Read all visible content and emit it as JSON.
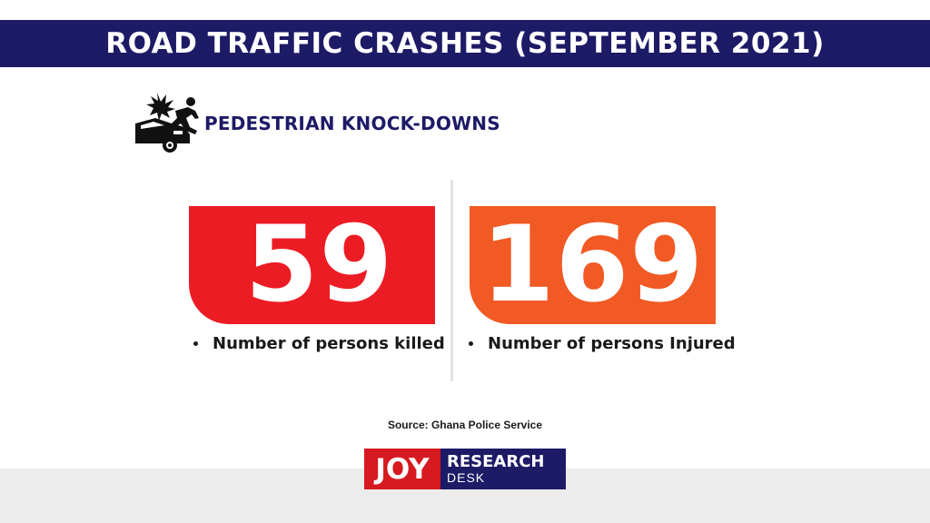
{
  "header": {
    "title": "ROAD TRAFFIC CRASHES (SEPTEMBER 2021)"
  },
  "section": {
    "icon": "car-pedestrian-crash-icon",
    "title": "PEDESTRIAN KNOCK-DOWNS"
  },
  "stats": [
    {
      "value": "59",
      "label": "Number of persons killed",
      "color": "#ec1c24"
    },
    {
      "value": "169",
      "label": "Number of persons Injured",
      "color": "#f15a24"
    }
  ],
  "source": "Source: Ghana Police Service",
  "logo": {
    "joy": "JOY",
    "line1": "RESEARCH",
    "line2": "DESK",
    "joy_color": "#d71920",
    "desk_color": "#1d1a66"
  },
  "colors": {
    "title_bar": "#1d1a66",
    "bottom_band": "#ececec"
  }
}
